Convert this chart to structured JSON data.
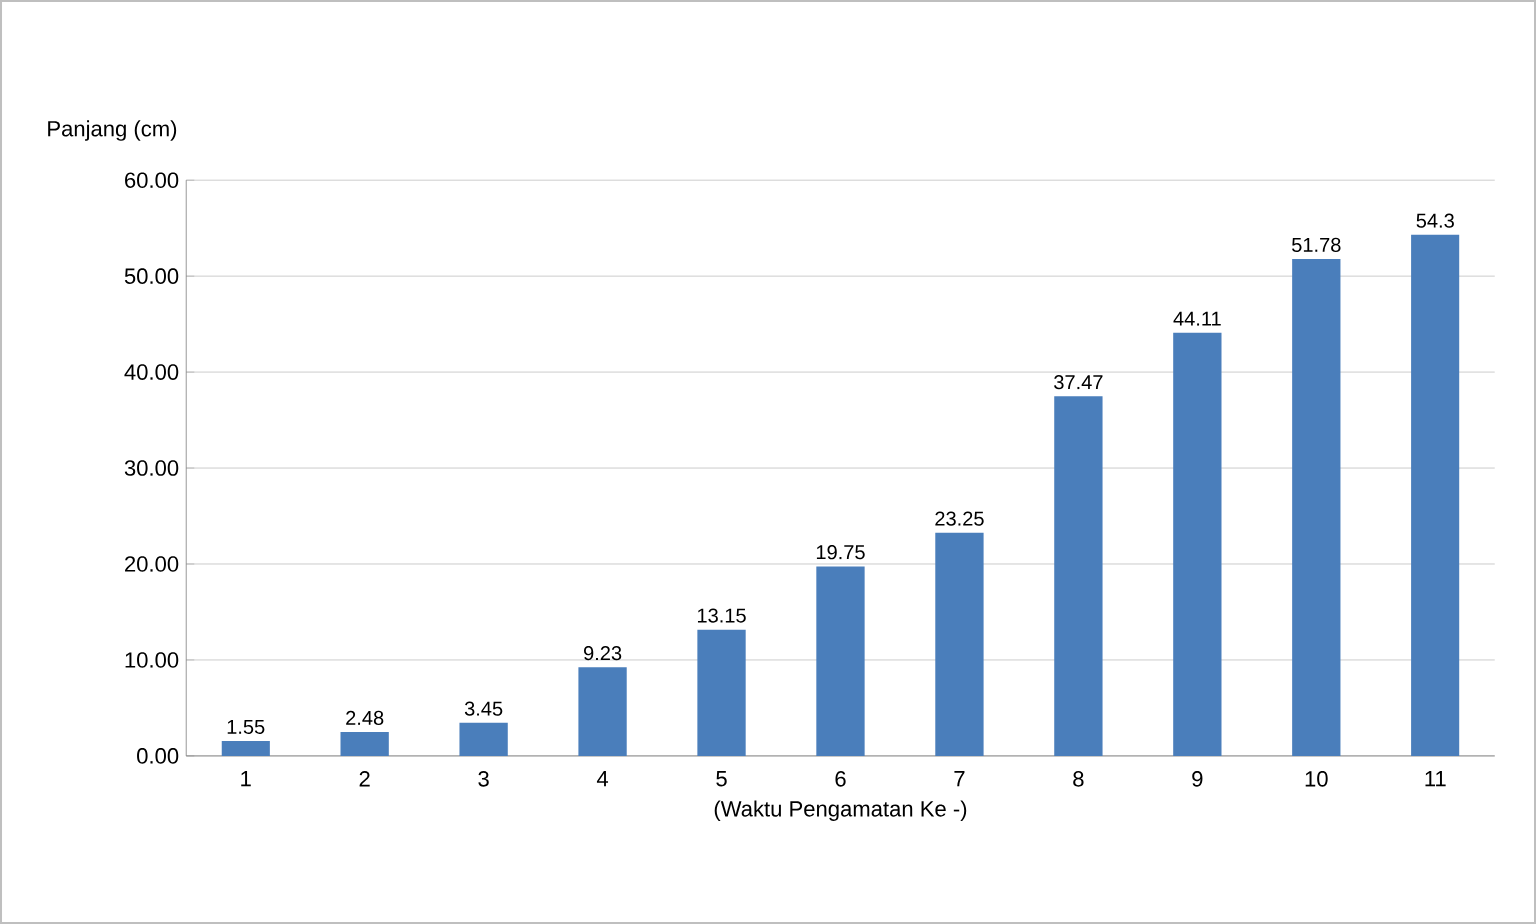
{
  "chart_data": {
    "type": "bar",
    "xlabel": "(Waktu Pengamatan Ke -)",
    "ylabel": "Panjang (cm)",
    "categories": [
      "1",
      "2",
      "3",
      "4",
      "5",
      "6",
      "7",
      "8",
      "9",
      "10",
      "11"
    ],
    "values": [
      1.55,
      2.48,
      3.45,
      9.23,
      13.15,
      19.75,
      23.25,
      37.47,
      44.11,
      51.78,
      54.3
    ],
    "color": "#4a7ebb",
    "data_labels": true,
    "grid": "y",
    "ylim": [
      0,
      60
    ],
    "yticks": [
      {
        "value": 0,
        "label": "0.00"
      },
      {
        "value": 10,
        "label": "10.00"
      },
      {
        "value": 20,
        "label": "20.00"
      },
      {
        "value": 30,
        "label": "30.00"
      },
      {
        "value": 40,
        "label": "40.00"
      },
      {
        "value": 50,
        "label": "50.00"
      },
      {
        "value": 60,
        "label": "60.00"
      }
    ]
  }
}
